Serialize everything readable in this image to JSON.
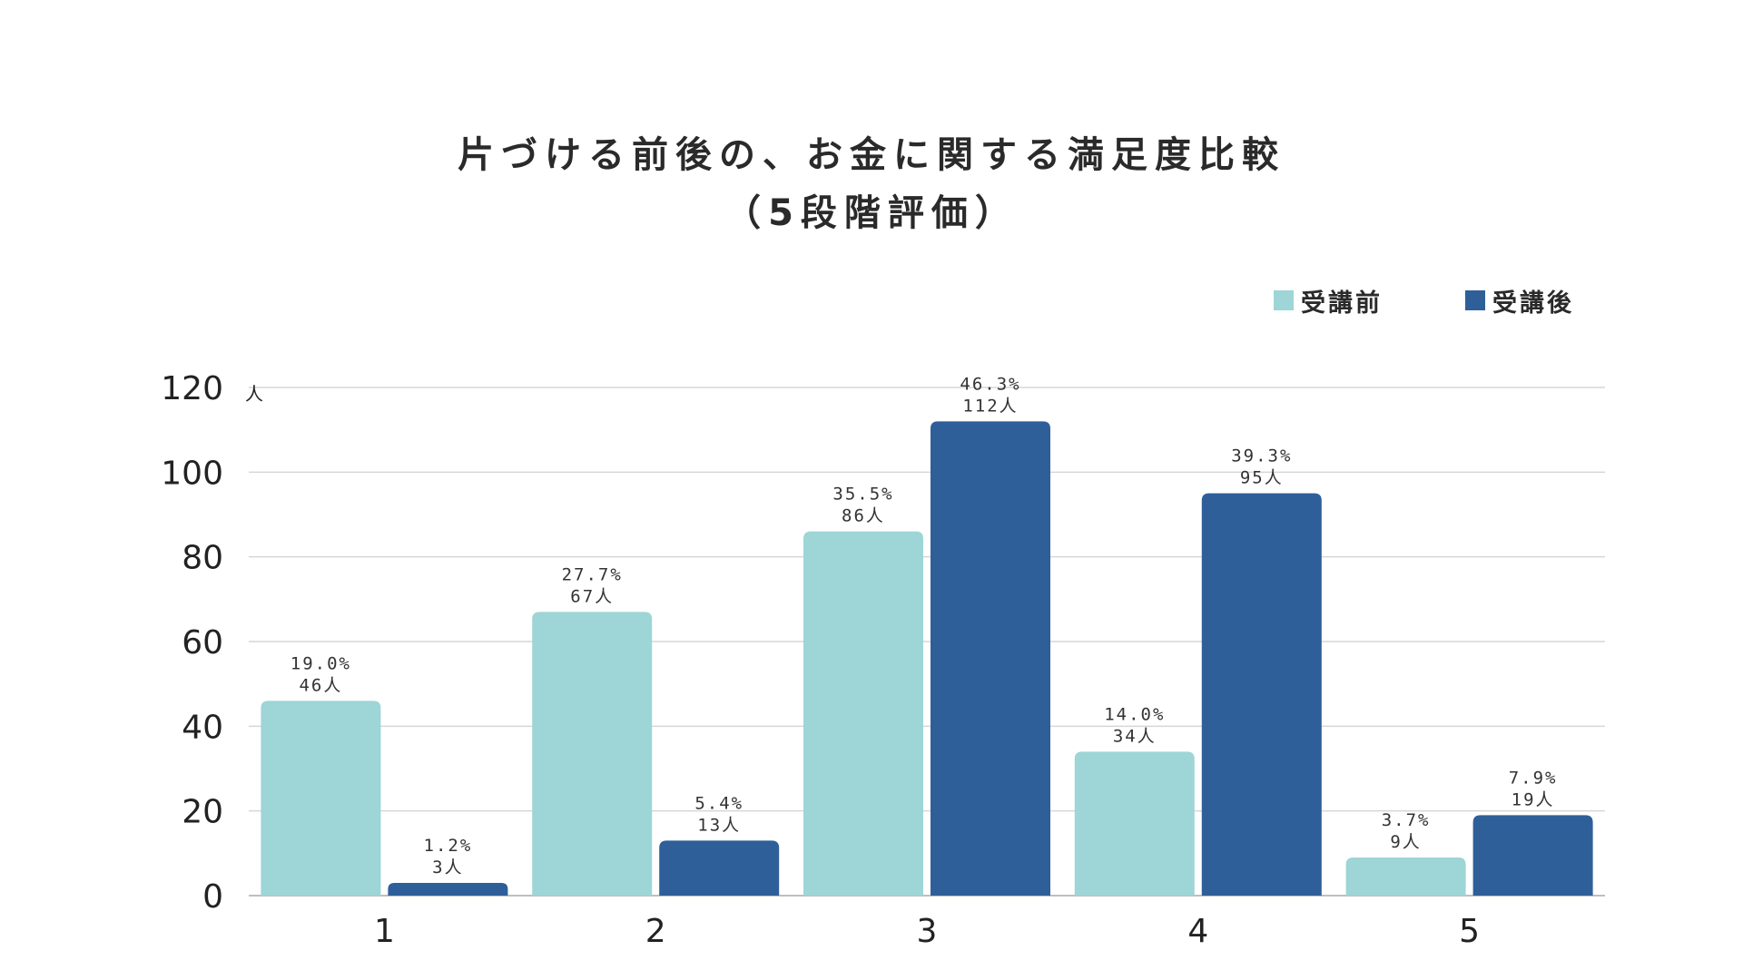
{
  "title": {
    "line1": "片づける前後の、お金に関する満足度比較",
    "line2": "（5段階評価）"
  },
  "chart_data": {
    "type": "bar",
    "title": "片づける前後の、お金に関する満足度比較（5段階評価）",
    "categories": [
      "1",
      "2",
      "3",
      "4",
      "5"
    ],
    "y_unit": "人",
    "ylim": [
      0,
      120
    ],
    "yticks": [
      0,
      20,
      40,
      60,
      80,
      100,
      120
    ],
    "grid": true,
    "legend_position": "top-right",
    "series": [
      {
        "name": "受講前",
        "color": "#9ed5d6",
        "values": [
          46,
          67,
          86,
          34,
          9
        ],
        "labels": [
          {
            "pct": "19.0%",
            "count": "46人"
          },
          {
            "pct": "27.7%",
            "count": "67人"
          },
          {
            "pct": "35.5%",
            "count": "86人"
          },
          {
            "pct": "14.0%",
            "count": "34人"
          },
          {
            "pct": "3.7%",
            "count": "9人"
          }
        ]
      },
      {
        "name": "受講後",
        "color": "#2e5f99",
        "values": [
          3,
          13,
          112,
          95,
          19
        ],
        "labels": [
          {
            "pct": "1.2%",
            "count": "3人"
          },
          {
            "pct": "5.4%",
            "count": "13人"
          },
          {
            "pct": "46.3%",
            "count": "112人"
          },
          {
            "pct": "39.3%",
            "count": "95人"
          },
          {
            "pct": "7.9%",
            "count": "19人"
          }
        ]
      }
    ]
  }
}
